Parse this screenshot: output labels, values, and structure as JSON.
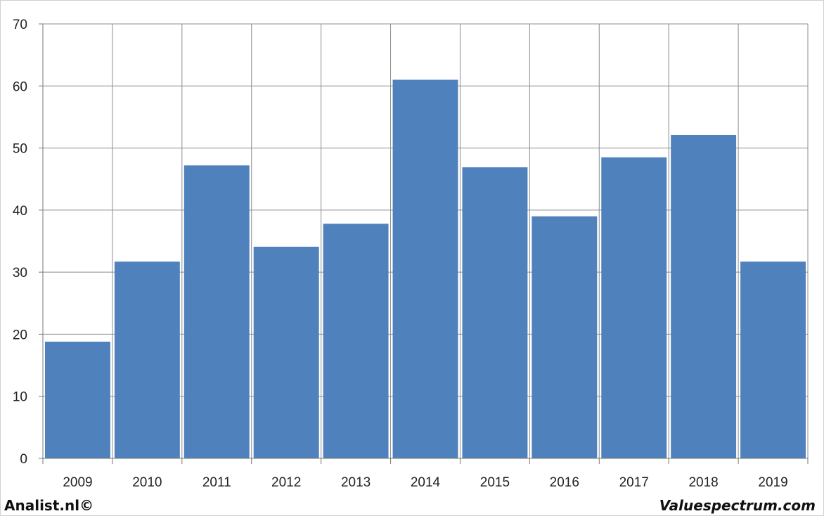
{
  "chart_data": {
    "type": "bar",
    "categories": [
      "2009",
      "2010",
      "2011",
      "2012",
      "2013",
      "2014",
      "2015",
      "2016",
      "2017",
      "2018",
      "2019"
    ],
    "values": [
      18.8,
      31.7,
      47.2,
      34.1,
      37.8,
      61.0,
      46.9,
      39.0,
      48.5,
      52.1,
      31.7
    ],
    "title": "",
    "xlabel": "",
    "ylabel": "",
    "ylim": [
      0,
      70
    ],
    "yticks": [
      "0",
      "10",
      "20",
      "30",
      "40",
      "50",
      "60",
      "70"
    ],
    "grid": true,
    "bar_color": "#4f81bd",
    "grid_color": "#8c8c8c"
  },
  "footer": {
    "left": "Analist.nl©",
    "right": "Valuespectrum.com"
  }
}
